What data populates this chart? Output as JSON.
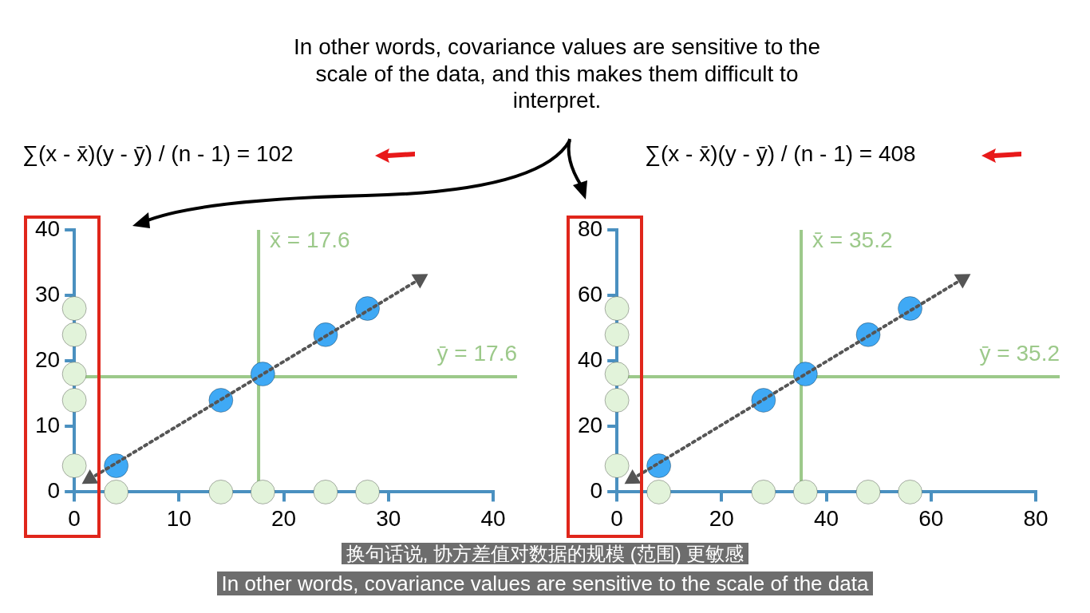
{
  "chart_data": [
    {
      "type": "scatter",
      "xlim": [
        0,
        40
      ],
      "ylim": [
        0,
        40
      ],
      "xticks": [
        0,
        10,
        20,
        30,
        40
      ],
      "yticks": [
        0,
        10,
        20,
        30,
        40
      ],
      "legend": false,
      "marker": "circle",
      "series": [
        {
          "color": "#e2f3da",
          "x": [
            4,
            14,
            18,
            24,
            28
          ],
          "values": [
            0,
            0,
            0,
            0,
            0
          ]
        },
        {
          "color": "#e2f3da",
          "x": [
            0,
            0,
            0,
            0,
            0
          ],
          "values": [
            4,
            14,
            18,
            24,
            28
          ]
        },
        {
          "type": "line",
          "color": "#555555",
          "line_style": "dotted",
          "marker": "triangle",
          "x": [
            1.5,
            33
          ],
          "values": [
            2,
            32.5
          ]
        },
        {
          "color": "#3fa9f5",
          "x": [
            4,
            14,
            18,
            24,
            28
          ],
          "values": [
            4,
            14,
            18,
            24,
            28
          ]
        }
      ],
      "ref_lines": [
        {
          "axis": "x",
          "value": 17.6,
          "label": "x̄ = 17.6",
          "color": "#9cc98a"
        },
        {
          "axis": "y",
          "value": 17.6,
          "label": "ȳ = 17.6",
          "color": "#9cc98a"
        }
      ],
      "annotations": [
        "∑(x - x̄)(y - ȳ) / (n - 1) = 102",
        "In other words, covariance values are sensitive to the scale of the data, and this makes them difficult to interpret.",
        "换句话说, 协方差值对数据的规模 (范围) 更敏感",
        "In other words, covariance values are sensitive to the scale of the data"
      ]
    },
    {
      "type": "scatter",
      "xlim": [
        0,
        80
      ],
      "ylim": [
        0,
        80
      ],
      "xticks": [
        0,
        20,
        40,
        60,
        80
      ],
      "yticks": [
        0,
        20,
        40,
        60,
        80
      ],
      "legend": false,
      "marker": "circle",
      "series": [
        {
          "color": "#e2f3da",
          "x": [
            8,
            28,
            36,
            48,
            56
          ],
          "values": [
            0,
            0,
            0,
            0,
            0
          ]
        },
        {
          "color": "#e2f3da",
          "x": [
            0,
            0,
            0,
            0,
            0
          ],
          "values": [
            8,
            28,
            36,
            48,
            56
          ]
        },
        {
          "type": "line",
          "color": "#555555",
          "line_style": "dotted",
          "marker": "triangle",
          "x": [
            3,
            66
          ],
          "values": [
            4,
            65
          ]
        },
        {
          "color": "#3fa9f5",
          "x": [
            8,
            28,
            36,
            48,
            56
          ],
          "values": [
            8,
            28,
            36,
            48,
            56
          ]
        }
      ],
      "ref_lines": [
        {
          "axis": "x",
          "value": 35.2,
          "label": "x̄ = 35.2",
          "color": "#9cc98a"
        },
        {
          "axis": "y",
          "value": 35.2,
          "label": "ȳ = 35.2",
          "color": "#9cc98a"
        }
      ],
      "annotations": [
        "∑(x - x̄)(y - ȳ) / (n - 1) = 408"
      ]
    }
  ]
}
